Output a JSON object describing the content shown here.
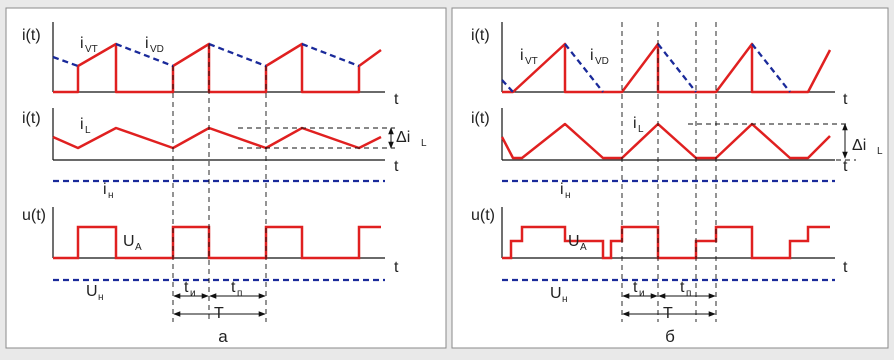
{
  "colors": {
    "background": "#e9e9e9",
    "panel": "#ffffff",
    "panel_border": "#8a8a8a",
    "solid": "#e02020",
    "dashed": "#1a2a9a",
    "axis": "#111111"
  },
  "panel_a": {
    "caption": "а",
    "y_label_1": "i(t)",
    "y_label_2": "i(t)",
    "y_label_3": "u(t)",
    "x_label": "t",
    "i_main": "i",
    "sub_vt": "VT",
    "sub_vd": "VD",
    "sub_l": "L",
    "sub_n": "н",
    "sub_a": "А",
    "sub_i": "и",
    "sub_p": "п",
    "delta_i": "Δi",
    "u_main": "U",
    "t_main": "t",
    "period": "T"
  },
  "panel_b": {
    "caption": "б",
    "y_label_1": "i(t)",
    "y_label_2": "i(t)",
    "y_label_3": "u(t)",
    "x_label": "t",
    "i_main": "i",
    "sub_vt": "VT",
    "sub_vd": "VD",
    "sub_l": "L",
    "sub_n": "н",
    "sub_a": "А",
    "sub_i": "и",
    "sub_p": "п",
    "delta_i": "Δi",
    "u_main": "U",
    "t_main": "t",
    "period": "T"
  }
}
